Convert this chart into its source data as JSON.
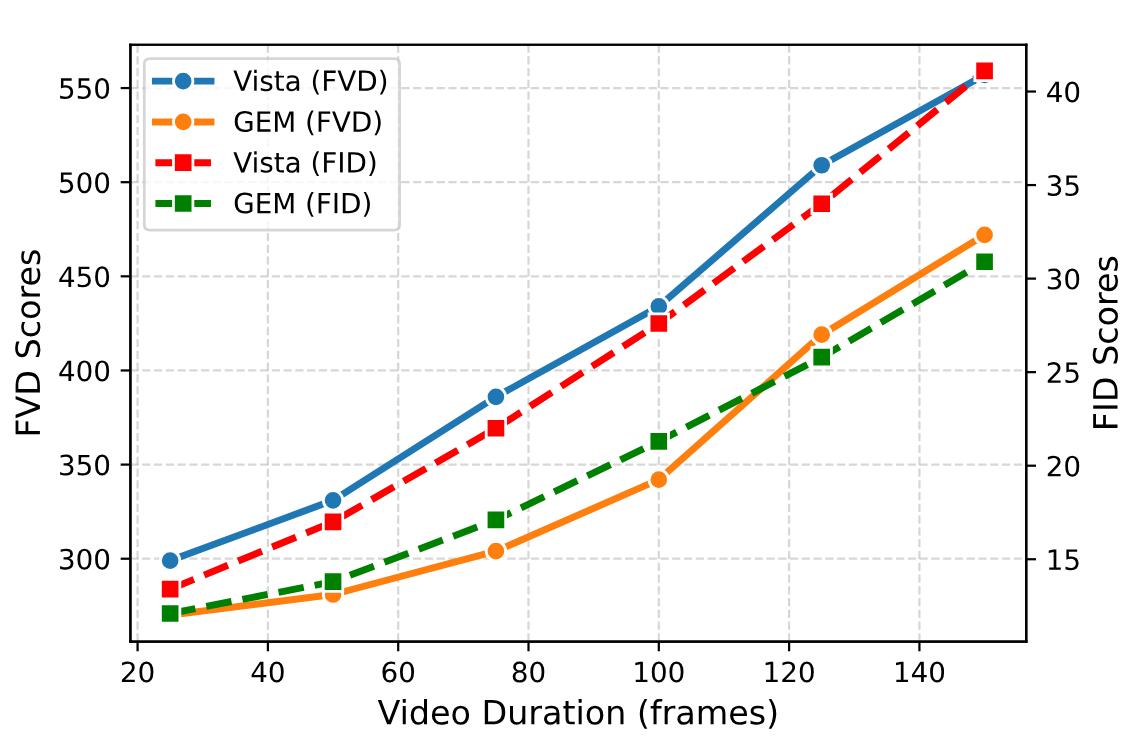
{
  "chart_data": {
    "type": "line",
    "xlabel": "Video Duration (frames)",
    "ylabel": "FVD Scores",
    "y2label": "FID Scores",
    "x": [
      25,
      50,
      75,
      100,
      125,
      150
    ],
    "series": [
      {
        "name": "Vista (FVD)",
        "color": "#1f77b4",
        "values": [
          299,
          331,
          386,
          434,
          509,
          557
        ],
        "marker": "circle",
        "line_style": "solid"
      },
      {
        "name": "GEM (FVD)",
        "color": "#ff7f0e",
        "values": [
          270,
          281,
          304,
          342,
          419,
          472
        ],
        "marker": "circle",
        "line_style": "solid"
      },
      {
        "name": "Vista (FID)",
        "color": "#ff0000",
        "values": [
          13.4,
          17.0,
          22.0,
          27.6,
          34.0,
          41.1
        ],
        "marker": "square",
        "line_style": "dashed",
        "axis": "y2"
      },
      {
        "name": "GEM (FID)",
        "color": "#008000",
        "values": [
          12.1,
          13.8,
          17.1,
          21.3,
          25.8,
          30.9
        ],
        "marker": "square",
        "line_style": "dashed",
        "axis": "y2"
      }
    ],
    "xlim": [
      18.9,
      156.4
    ],
    "xticks": [
      20,
      40,
      60,
      80,
      100,
      120,
      140
    ],
    "ylim": [
      256,
      573
    ],
    "yticks": [
      300,
      350,
      400,
      450,
      500,
      550
    ],
    "y2lim": [
      10.6,
      42.5
    ],
    "y2ticks": [
      15,
      20,
      25,
      30,
      35,
      40
    ],
    "grid": true,
    "legend": "top left"
  }
}
